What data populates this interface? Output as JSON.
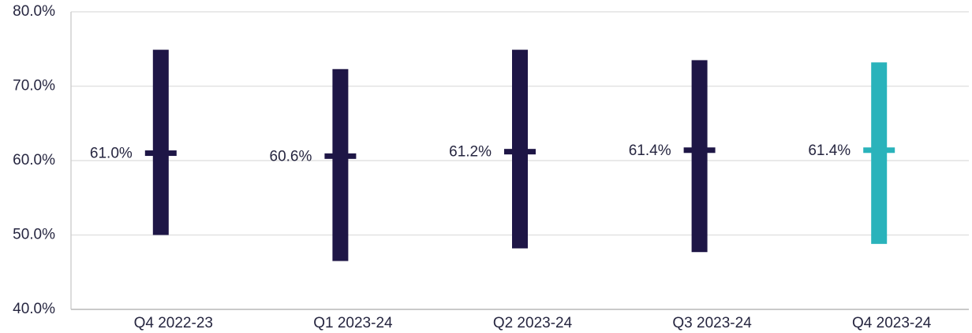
{
  "chart_data": {
    "type": "range",
    "categories": [
      "Q4 2022-23",
      "Q1 2023-24",
      "Q2 2023-24",
      "Q3 2023-24",
      "Q4 2023-24"
    ],
    "low": [
      50.0,
      46.5,
      48.2,
      47.7,
      48.8
    ],
    "high": [
      74.9,
      72.3,
      74.9,
      73.5,
      73.2
    ],
    "values": [
      61.0,
      60.6,
      61.2,
      61.4,
      61.4
    ],
    "value_labels": [
      "61.0%",
      "60.6%",
      "61.2%",
      "61.4%",
      "61.4%"
    ],
    "colors": [
      "#1e1646",
      "#1e1646",
      "#1e1646",
      "#1e1646",
      "#2ab3bb"
    ],
    "ylim": [
      40,
      80
    ],
    "yticks": [
      {
        "value": 40,
        "label": "40.0%"
      },
      {
        "value": 50,
        "label": "50.0%"
      },
      {
        "value": 60,
        "label": "60.0%"
      },
      {
        "value": 70,
        "label": "70.0%"
      },
      {
        "value": 80,
        "label": "80.0%"
      }
    ],
    "grid": true
  }
}
